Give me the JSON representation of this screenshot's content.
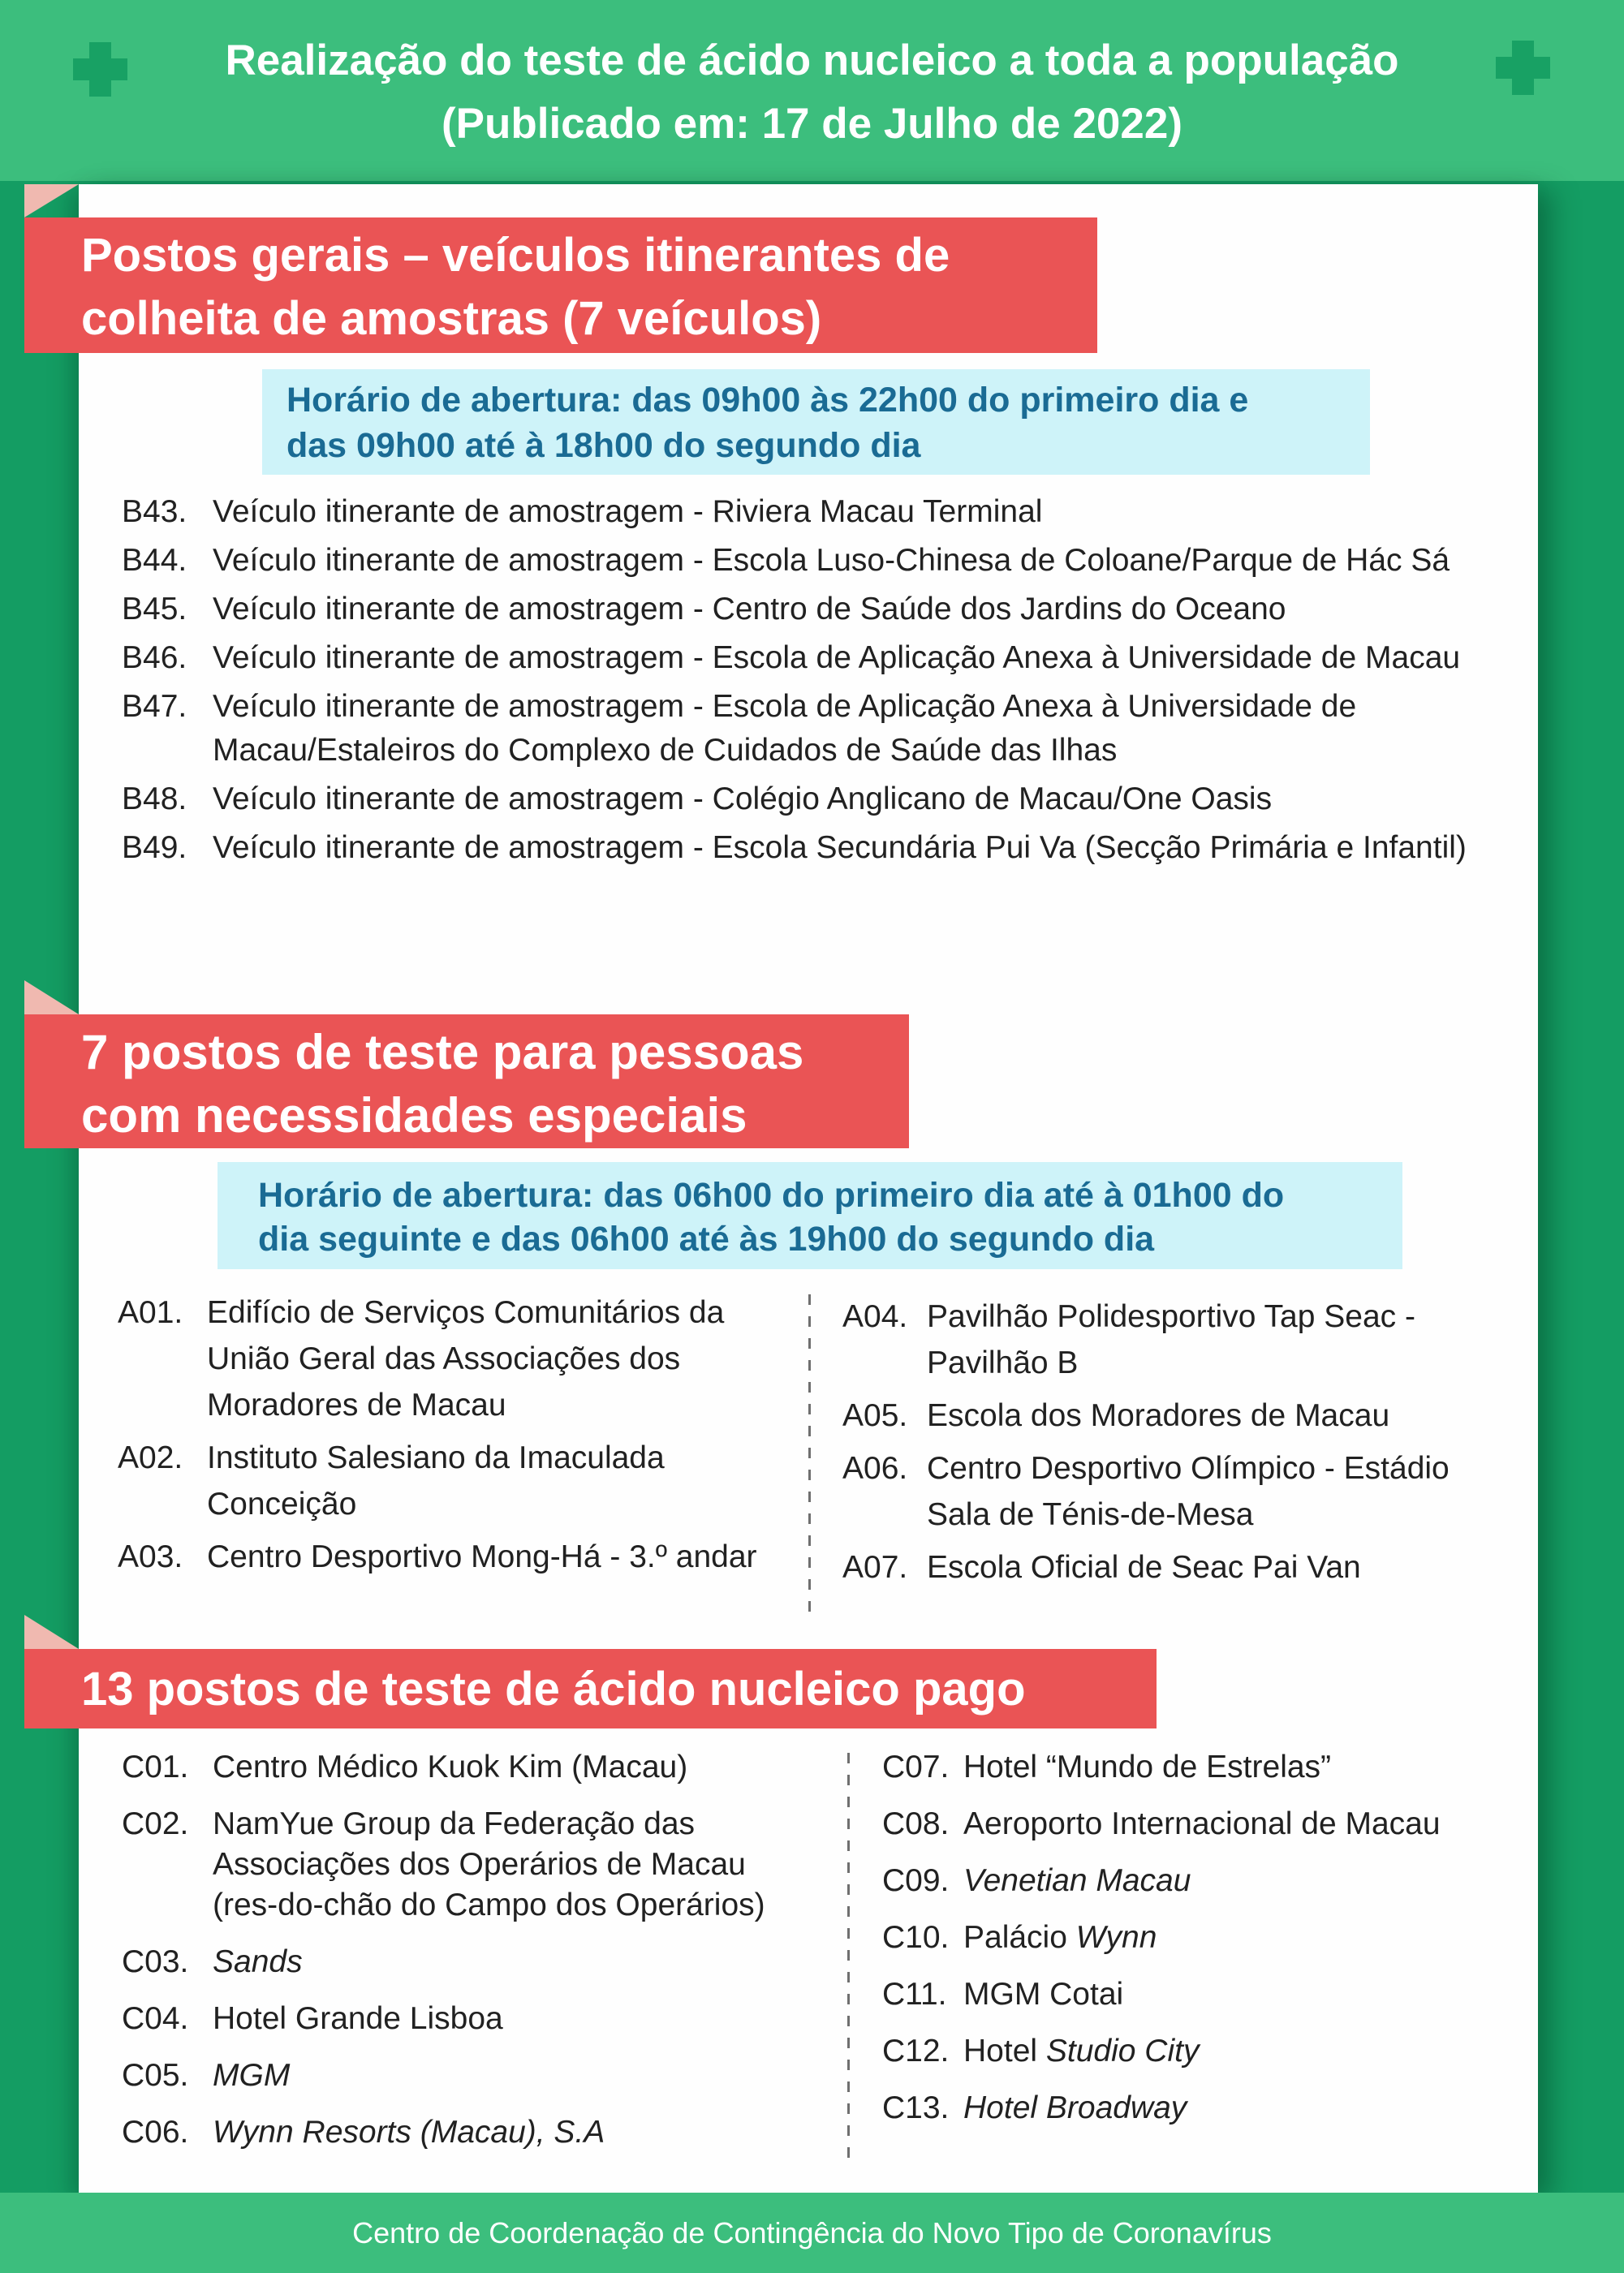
{
  "colors": {
    "green-light": "#3CBE7D",
    "green-dark": "#149D63",
    "green-cross": "#18A164",
    "red": "#EA5455",
    "pink": "#F0B9B0",
    "cyan": "#CEF3F9",
    "blue": "#1A6B94",
    "text": "#212121",
    "divider": "#6F6F6F",
    "card": "#FEFEFE"
  },
  "header": {
    "title": "Realização do teste de ácido nucleico a toda a população",
    "subtitle": "(Publicado em: 17 de Julho de 2022)"
  },
  "footer": {
    "text": "Centro de Coordenação de Contingência do Novo Tipo de Coronavírus"
  },
  "sections": [
    {
      "heading_lines": [
        "Postos gerais – veículos itinerantes de",
        "colheita de amostras (7 veículos)"
      ],
      "hours_lines": [
        "Horário de abertura: das 09h00 às 22h00 do primeiro dia e",
        "das 09h00 até à 18h00 do segundo dia"
      ],
      "items": [
        {
          "label": "B43.",
          "segments": [
            {
              "t": "Veículo itinerante de amostragem - Riviera Macau Terminal"
            }
          ]
        },
        {
          "label": "B44.",
          "segments": [
            {
              "t": "Veículo itinerante de amostragem - Escola Luso-Chinesa de Coloane/Parque de Hác Sá"
            }
          ]
        },
        {
          "label": "B45.",
          "segments": [
            {
              "t": "Veículo itinerante de amostragem - Centro de Saúde dos Jardins do Oceano"
            }
          ]
        },
        {
          "label": "B46.",
          "segments": [
            {
              "t": "Veículo itinerante de amostragem - Escola de Aplicação Anexa à Universidade de Macau"
            }
          ]
        },
        {
          "label": "B47.",
          "segments": [
            {
              "t": "Veículo itinerante de amostragem - Escola de Aplicação Anexa à Universidade de Macau/Estaleiros do Complexo de Cuidados de Saúde das Ilhas"
            }
          ]
        },
        {
          "label": "B48.",
          "segments": [
            {
              "t": "Veículo itinerante de amostragem - Colégio Anglicano de Macau/One Oasis"
            }
          ]
        },
        {
          "label": "B49.",
          "segments": [
            {
              "t": "Veículo itinerante de amostragem - Escola Secundária Pui Va (Secção Primária e Infantil)"
            }
          ]
        }
      ]
    },
    {
      "heading_lines": [
        "7 postos de teste para pessoas",
        "com necessidades especiais"
      ],
      "hours_lines": [
        "Horário de abertura: das 06h00 do primeiro dia até à 01h00 do",
        "dia seguinte e das 06h00 até às 19h00 do segundo dia"
      ],
      "columns": {
        "left": [
          {
            "label": "A01.",
            "segments": [
              {
                "t": "Edifício de Serviços Comunitários da União Geral das Associações dos Moradores de Macau"
              }
            ]
          },
          {
            "label": "A02.",
            "segments": [
              {
                "t": "Instituto Salesiano da Imaculada Conceição"
              }
            ]
          },
          {
            "label": "A03.",
            "segments": [
              {
                "t": "Centro Desportivo Mong-Há - 3.º andar"
              }
            ]
          }
        ],
        "right": [
          {
            "label": "A04.",
            "segments": [
              {
                "t": "Pavilhão Polidesportivo Tap Seac - Pavilhão B"
              }
            ]
          },
          {
            "label": "A05.",
            "segments": [
              {
                "t": "Escola dos Moradores de Macau"
              }
            ]
          },
          {
            "label": "A06.",
            "segments": [
              {
                "t": "Centro Desportivo Olímpico - Estádio Sala de Ténis-de-Mesa"
              }
            ]
          },
          {
            "label": "A07.",
            "segments": [
              {
                "t": "Escola Oficial de Seac Pai Van"
              }
            ]
          }
        ]
      }
    },
    {
      "heading_lines": [
        "13 postos de teste de ácido nucleico pago"
      ],
      "columns": {
        "left": [
          {
            "label": "C01.",
            "segments": [
              {
                "t": "Centro Médico Kuok Kim (Macau)"
              }
            ]
          },
          {
            "label": "C02.",
            "segments": [
              {
                "t": "NamYue Group da Federação das Associações dos Operários de Macau (res-do-chão do Campo dos Operários)"
              }
            ]
          },
          {
            "label": "C03.",
            "segments": [
              {
                "t": "Sands",
                "i": true
              }
            ]
          },
          {
            "label": "C04.",
            "segments": [
              {
                "t": "Hotel Grande Lisboa"
              }
            ]
          },
          {
            "label": "C05.",
            "segments": [
              {
                "t": "MGM",
                "i": true
              }
            ]
          },
          {
            "label": "C06.",
            "segments": [
              {
                "t": "Wynn Resorts (Macau), S.A",
                "i": true
              }
            ]
          }
        ],
        "right": [
          {
            "label": "C07.",
            "segments": [
              {
                "t": "Hotel “Mundo de Estrelas”"
              }
            ]
          },
          {
            "label": "C08.",
            "segments": [
              {
                "t": "Aeroporto Internacional de Macau"
              }
            ]
          },
          {
            "label": "C09.",
            "segments": [
              {
                "t": "Venetian Macau",
                "i": true
              }
            ]
          },
          {
            "label": "C10.",
            "segments": [
              {
                "t": "Palácio "
              },
              {
                "t": "Wynn",
                "i": true
              }
            ]
          },
          {
            "label": "C11.",
            "segments": [
              {
                "t": "MGM Cotai"
              }
            ]
          },
          {
            "label": "C12.",
            "segments": [
              {
                "t": "Hotel "
              },
              {
                "t": "Studio City",
                "i": true
              }
            ]
          },
          {
            "label": "C13.",
            "segments": [
              {
                "t": "Hotel Broadway",
                "i": true
              }
            ]
          }
        ]
      }
    }
  ]
}
